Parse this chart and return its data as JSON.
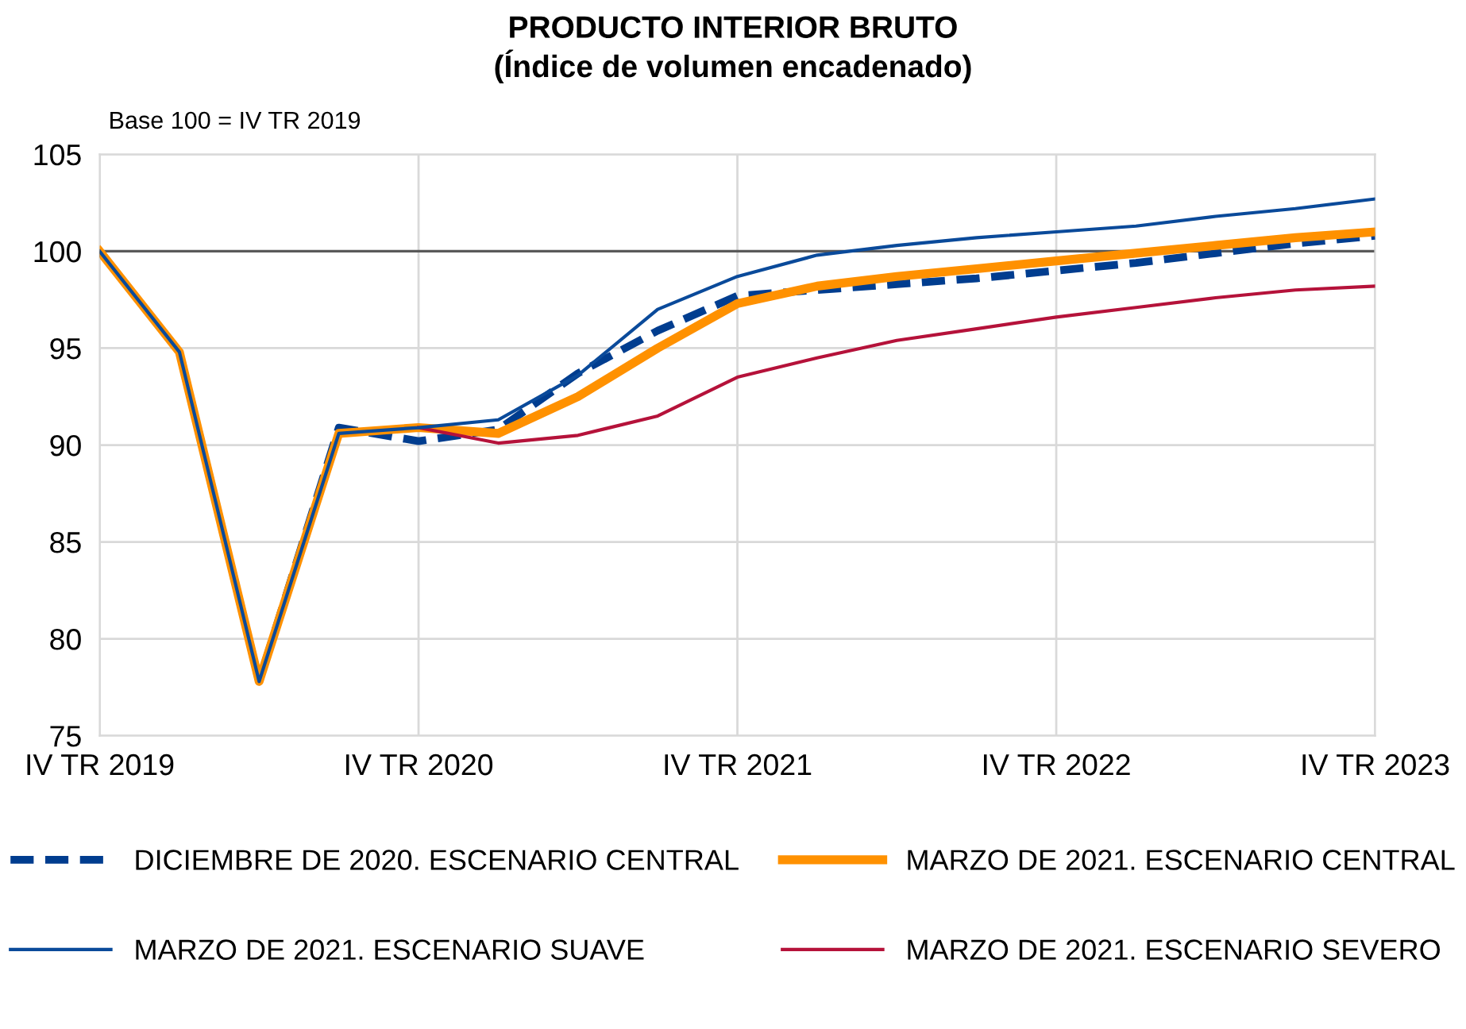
{
  "chart_data": {
    "type": "line",
    "title": "PRODUCTO INTERIOR BRUTO\n(Índice de volumen encadenado)",
    "annotations": [
      "Base 100 = IV TR 2019"
    ],
    "categories": [
      "IV TR 2019",
      null,
      null,
      null,
      "IV TR 2020",
      null,
      null,
      null,
      "IV TR 2021",
      null,
      null,
      null,
      "IV TR 2022",
      null,
      null,
      null,
      "IV TR 2023"
    ],
    "ylim": [
      75,
      105
    ],
    "yticks": [
      75,
      80,
      85,
      90,
      95,
      100,
      105
    ],
    "grid": true,
    "legend": "bottom",
    "marker": "none",
    "ref_lines": [
      {
        "axis": "y",
        "value": 100,
        "color": "#595959",
        "line_style": "solid"
      }
    ],
    "series": [
      {
        "name": "DICIEMBRE DE 2020. ESCENARIO CENTRAL",
        "color": "#003d8f",
        "line_style": "dashed",
        "values": [
          100,
          94.8,
          77.8,
          90.9,
          90.2,
          90.8,
          93.7,
          95.9,
          97.7,
          98.0,
          98.3,
          98.6,
          99.0,
          99.4,
          99.9,
          100.4,
          100.8
        ]
      },
      {
        "name": "MARZO DE 2021. ESCENARIO CENTRAL",
        "color": "#ff9100",
        "line_style": "solid",
        "values": [
          100,
          94.8,
          77.8,
          90.6,
          90.9,
          90.6,
          92.5,
          95.0,
          97.3,
          98.2,
          98.7,
          99.1,
          99.5,
          99.9,
          100.3,
          100.7,
          101.0
        ]
      },
      {
        "name": "MARZO DE 2021. ESCENARIO SUAVE",
        "color": "#0a4a9a",
        "line_style": "solid",
        "values": [
          100,
          94.8,
          77.8,
          90.6,
          90.9,
          91.3,
          93.6,
          97.0,
          98.7,
          99.8,
          100.3,
          100.7,
          101.0,
          101.3,
          101.8,
          102.2,
          102.7
        ]
      },
      {
        "name": "MARZO DE 2021. ESCENARIO SEVERO",
        "color": "#b5123a",
        "line_style": "solid",
        "values": [
          null,
          null,
          null,
          null,
          90.9,
          90.1,
          90.5,
          91.5,
          93.5,
          94.5,
          95.4,
          96.0,
          96.6,
          97.1,
          97.6,
          98.0,
          98.2
        ]
      }
    ]
  }
}
